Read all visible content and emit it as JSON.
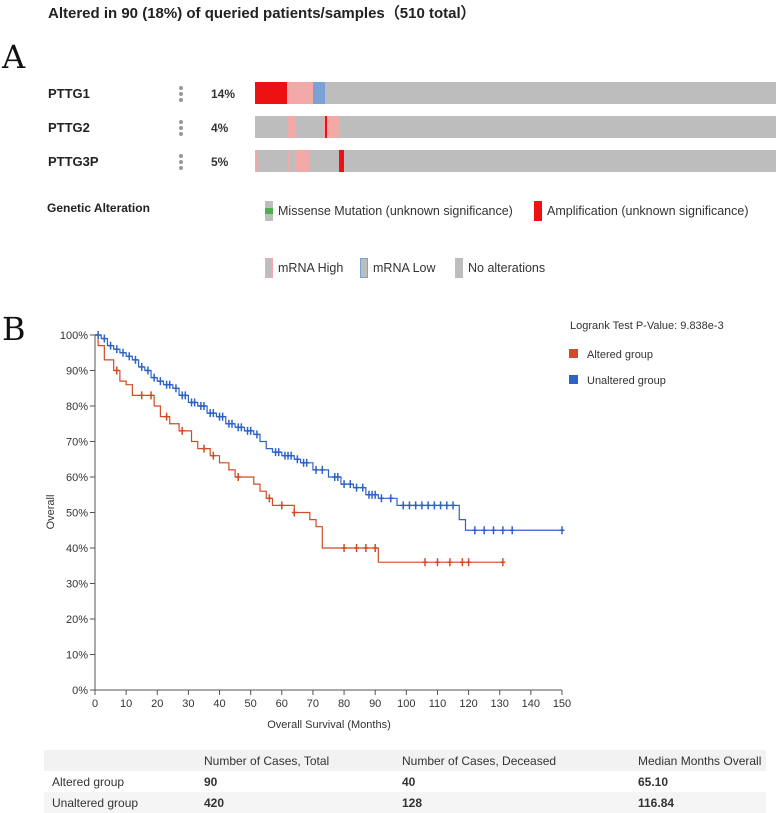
{
  "header": {
    "title": "Altered in 90 (18%) of queried patients/samples（510 total）"
  },
  "panels": {
    "a": "A",
    "b": "B"
  },
  "oncoprint": {
    "genes": [
      {
        "name": "PTTG1",
        "percent": "14%"
      },
      {
        "name": "PTTG2",
        "percent": "4%"
      },
      {
        "name": "PTTG3P",
        "percent": "5%"
      }
    ],
    "legend_title": "Genetic Alteration",
    "legend": [
      {
        "label": "Missense Mutation (unknown significance)",
        "color": "#4caf50"
      },
      {
        "label": "Amplification (unknown significance)",
        "color": "#ee1111"
      },
      {
        "label": "mRNA High",
        "color": "#f4a9a9"
      },
      {
        "label": "mRNA Low",
        "color": "#7ba2d6"
      },
      {
        "label": "No alterations",
        "color": "#bdbdbd"
      }
    ]
  },
  "chart_data": {
    "type": "line",
    "subtype": "kaplan-meier",
    "title": "",
    "xlabel": "Overall Survival (Months)",
    "ylabel": "Overall",
    "xlim": [
      0,
      150
    ],
    "ylim": [
      0,
      100
    ],
    "x_ticks": [
      0,
      10,
      20,
      30,
      40,
      50,
      60,
      70,
      80,
      90,
      100,
      110,
      120,
      130,
      140,
      150
    ],
    "y_ticks": [
      "0%",
      "10%",
      "20%",
      "30%",
      "40%",
      "50%",
      "60%",
      "70%",
      "80%",
      "90%",
      "100%"
    ],
    "annotation": "Logrank Test P-Value: 9.838e-3",
    "series": [
      {
        "name": "Altered group",
        "color": "#d14b26",
        "steps": [
          [
            0,
            100
          ],
          [
            1,
            97
          ],
          [
            3,
            93
          ],
          [
            6,
            90
          ],
          [
            8,
            87
          ],
          [
            10,
            86
          ],
          [
            12,
            83
          ],
          [
            19,
            80
          ],
          [
            21,
            77
          ],
          [
            24,
            75
          ],
          [
            27,
            73
          ],
          [
            31,
            70
          ],
          [
            33,
            68
          ],
          [
            37,
            66
          ],
          [
            40,
            64
          ],
          [
            43,
            62
          ],
          [
            45,
            60
          ],
          [
            51,
            58
          ],
          [
            53,
            56
          ],
          [
            55,
            54
          ],
          [
            57,
            52
          ],
          [
            64,
            50
          ],
          [
            69,
            48
          ],
          [
            71,
            46
          ],
          [
            73,
            40
          ],
          [
            91,
            36
          ],
          [
            131,
            36
          ]
        ],
        "censored_x": [
          7,
          15,
          18,
          23,
          28,
          35,
          38,
          46,
          56,
          60,
          64,
          80,
          84,
          87,
          90,
          106,
          110,
          114,
          118,
          120,
          131
        ]
      },
      {
        "name": "Unaltered group",
        "color": "#2f63c3",
        "steps": [
          [
            0,
            100
          ],
          [
            2,
            99
          ],
          [
            4,
            97
          ],
          [
            6,
            96
          ],
          [
            8,
            95
          ],
          [
            10,
            94
          ],
          [
            12,
            93
          ],
          [
            14,
            91
          ],
          [
            16,
            90
          ],
          [
            18,
            88
          ],
          [
            20,
            87
          ],
          [
            22,
            86
          ],
          [
            25,
            85
          ],
          [
            27,
            83
          ],
          [
            30,
            81
          ],
          [
            33,
            80
          ],
          [
            36,
            78
          ],
          [
            39,
            77
          ],
          [
            42,
            75
          ],
          [
            45,
            74
          ],
          [
            48,
            73
          ],
          [
            51,
            72
          ],
          [
            53,
            70
          ],
          [
            55,
            68
          ],
          [
            57,
            67
          ],
          [
            60,
            66
          ],
          [
            64,
            65
          ],
          [
            66,
            64
          ],
          [
            70,
            62
          ],
          [
            75,
            60
          ],
          [
            79,
            58
          ],
          [
            83,
            57
          ],
          [
            87,
            55
          ],
          [
            91,
            54
          ],
          [
            97,
            52
          ],
          [
            114,
            52
          ],
          [
            117,
            48
          ],
          [
            119,
            45
          ],
          [
            150,
            45
          ]
        ],
        "censored_x": [
          1,
          3,
          5,
          7,
          9,
          11,
          13,
          15,
          17,
          19,
          21,
          23,
          24,
          26,
          28,
          29,
          31,
          32,
          34,
          35,
          37,
          38,
          40,
          41,
          43,
          44,
          46,
          47,
          49,
          50,
          52,
          58,
          59,
          61,
          62,
          63,
          65,
          67,
          68,
          71,
          73,
          77,
          78,
          80,
          82,
          84,
          86,
          88,
          89,
          90,
          92,
          95,
          99,
          101,
          103,
          105,
          107,
          109,
          111,
          113,
          115,
          122,
          125,
          128,
          131,
          134,
          150
        ]
      }
    ]
  },
  "stats_table": {
    "columns": [
      "",
      "Number of Cases, Total",
      "Number of Cases, Deceased",
      "Median Months Overall"
    ],
    "rows": [
      [
        "Altered group",
        "90",
        "40",
        "65.10"
      ],
      [
        "Unaltered group",
        "420",
        "128",
        "116.84"
      ]
    ]
  }
}
